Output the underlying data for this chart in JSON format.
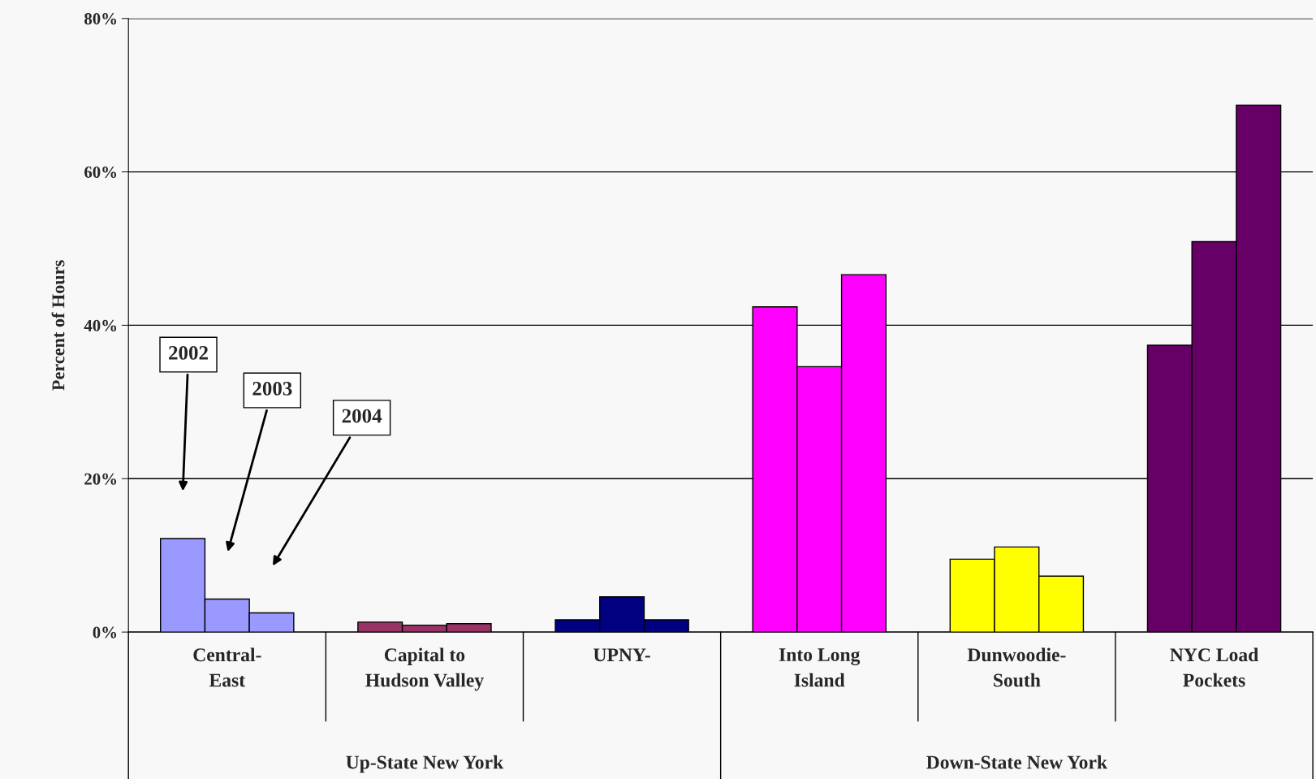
{
  "chart_data": {
    "type": "bar",
    "ylabel": "Percent of Hours",
    "categories": [
      "Central-\nEast",
      "Capital to\nHudson Valley",
      "UPNY-\n",
      "Into Long\nIsland",
      "Dunwoodie-\nSouth",
      "NYC Load\nPockets"
    ],
    "series": [
      {
        "name": "2002",
        "values": [
          12.2,
          1.3,
          1.6,
          42.4,
          9.5,
          37.4
        ],
        "colors": [
          "#9999ff",
          "#993366",
          "#000080",
          "#ff00ff",
          "#ffff00",
          "#660066"
        ]
      },
      {
        "name": "2003",
        "values": [
          4.3,
          0.9,
          4.6,
          34.6,
          11.1,
          50.9
        ],
        "colors": [
          "#9999ff",
          "#993366",
          "#000080",
          "#ff00ff",
          "#ffff00",
          "#660066"
        ]
      },
      {
        "name": "2004",
        "values": [
          2.5,
          1.1,
          1.6,
          46.6,
          7.3,
          68.7
        ],
        "colors": [
          "#9999ff",
          "#993366",
          "#000080",
          "#ff00ff",
          "#ffff00",
          "#660066"
        ]
      }
    ],
    "ylim": [
      0,
      80
    ],
    "yticks": [
      {
        "value": 0,
        "label": "0%"
      },
      {
        "value": 20,
        "label": "20%"
      },
      {
        "value": 40,
        "label": "40%"
      },
      {
        "value": 60,
        "label": "60%"
      },
      {
        "value": 80,
        "label": "80%"
      }
    ],
    "grid": "y",
    "annotations": [
      "Up-State New York",
      "Down-State New York"
    ]
  }
}
